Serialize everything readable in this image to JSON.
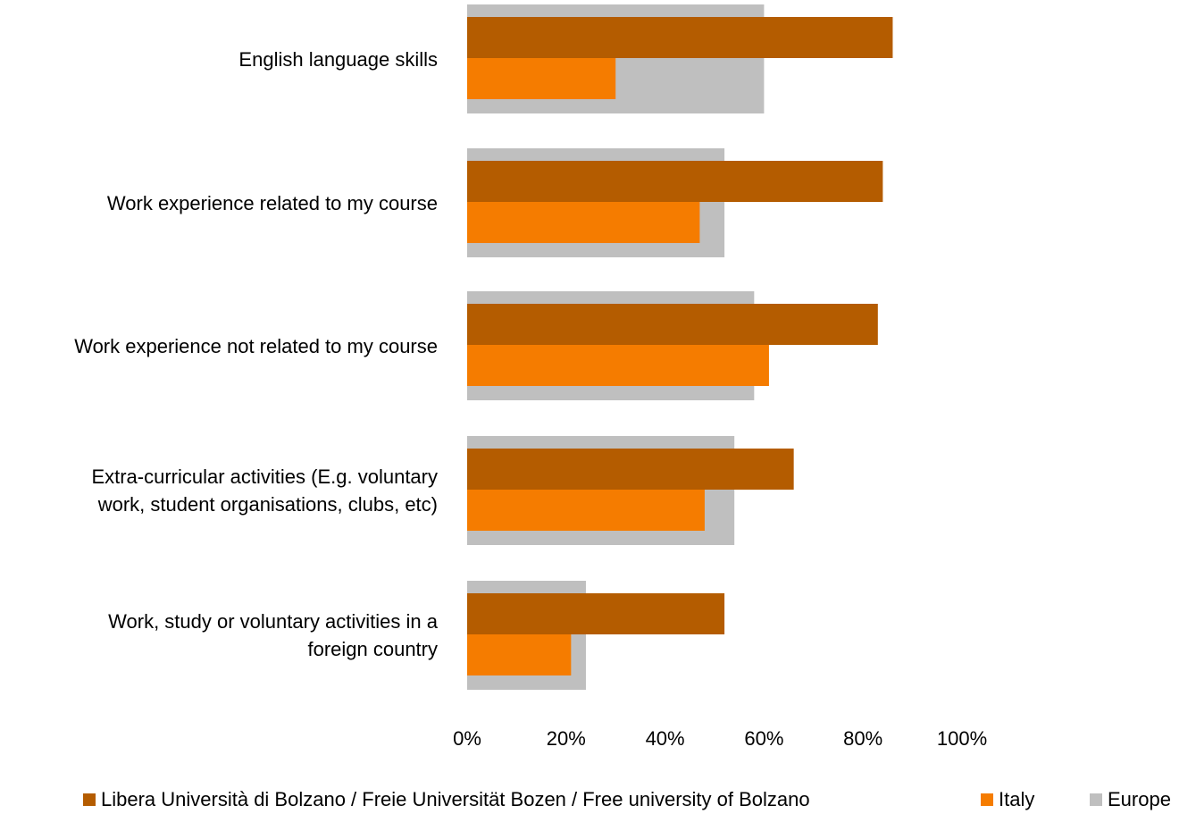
{
  "chart_data": {
    "type": "bar",
    "orientation": "horizontal",
    "title": "",
    "xlabel": "",
    "ylabel": "",
    "xlim": [
      0,
      100
    ],
    "x_ticks": [
      "0%",
      "20%",
      "40%",
      "60%",
      "80%",
      "100%"
    ],
    "categories": [
      "English language skills",
      "Work experience related to my course",
      "Work experience not related to my course",
      "Extra-curricular activities (E.g. voluntary work, student organisations, clubs, etc)",
      "Work, study or voluntary activities in a foreign country"
    ],
    "category_lines": [
      [
        "English language skills"
      ],
      [
        "Work experience related to my course"
      ],
      [
        "Work experience not related to my course"
      ],
      [
        "Extra-curricular activities (E.g. voluntary",
        "work, student organisations, clubs, etc)"
      ],
      [
        "Work, study or voluntary activities in a",
        "foreign country"
      ]
    ],
    "series": [
      {
        "name": "Libera Università di Bolzano / Freie Universität Bozen / Free university of Bolzano",
        "color": "#b45c00",
        "values": [
          86,
          84,
          83,
          66,
          52
        ]
      },
      {
        "name": "Italy",
        "color": "#f57c00",
        "values": [
          30,
          47,
          61,
          48,
          21
        ]
      },
      {
        "name": "Europe",
        "color": "#bfbfbf",
        "values": [
          60,
          52,
          58,
          54,
          24
        ]
      }
    ],
    "grid": false,
    "legend_position": "bottom"
  }
}
